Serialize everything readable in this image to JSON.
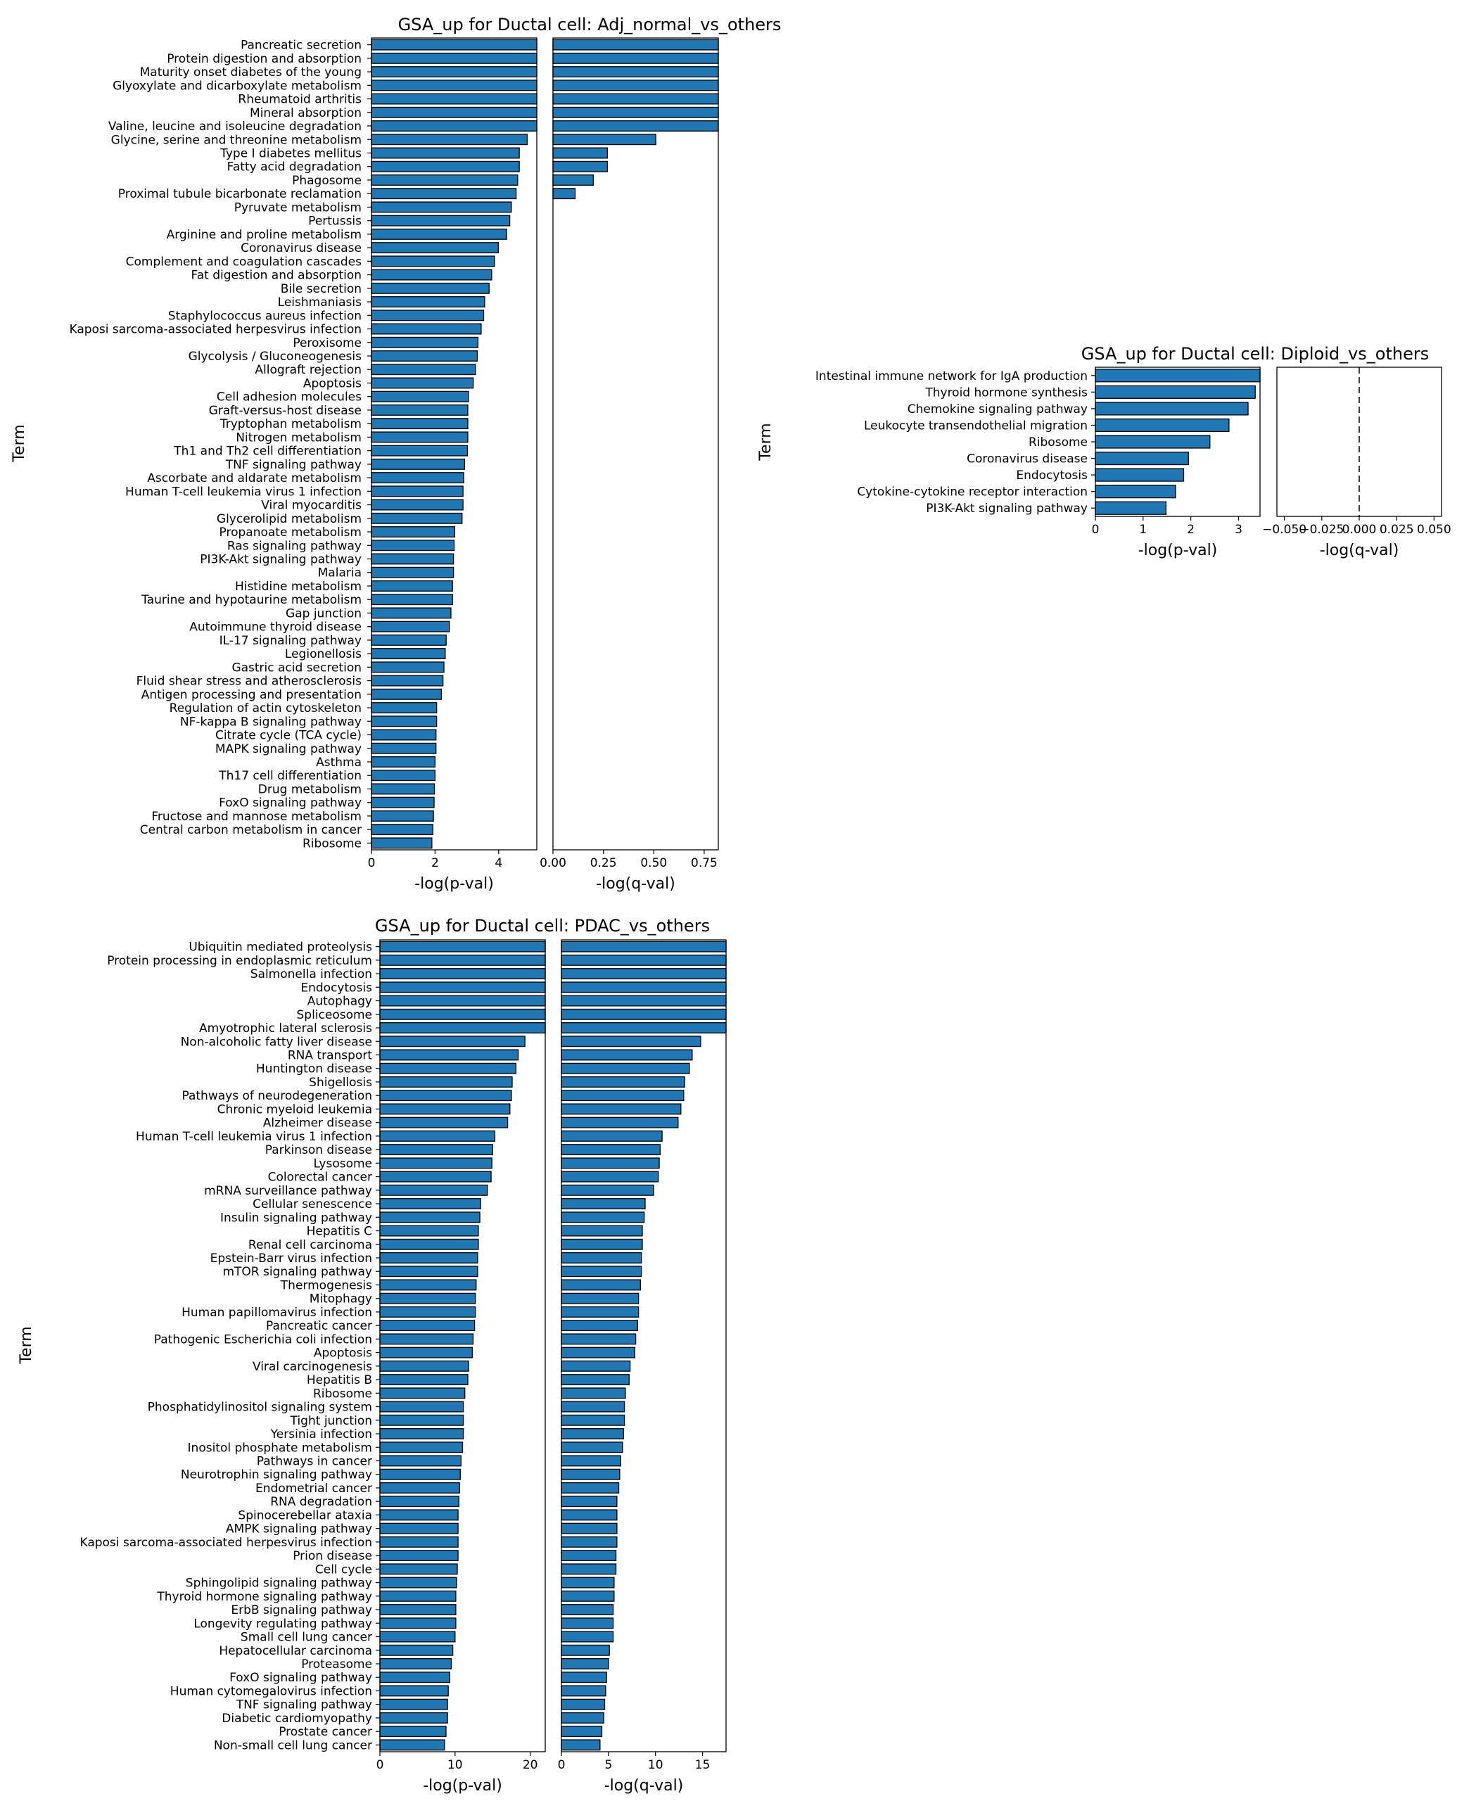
{
  "chart_data": [
    {
      "type": "bar",
      "orientation": "horizontal",
      "title": "GSA_up for Ductal cell: Adj_normal_vs_others",
      "ylabel": "Term",
      "categories": [
        "Pancreatic secretion",
        "Protein digestion and absorption",
        "Maturity onset diabetes of the young",
        "Glyoxylate and dicarboxylate metabolism",
        "Rheumatoid arthritis",
        "Mineral absorption",
        "Valine, leucine and isoleucine degradation",
        "Glycine, serine and threonine metabolism",
        "Type I diabetes mellitus",
        "Fatty acid degradation",
        "Phagosome",
        "Proximal tubule bicarbonate reclamation",
        "Pyruvate metabolism",
        "Pertussis",
        "Arginine and proline metabolism",
        "Coronavirus disease",
        "Complement and coagulation cascades",
        "Fat digestion and absorption",
        "Bile secretion",
        "Leishmaniasis",
        "Staphylococcus aureus infection",
        "Kaposi sarcoma-associated herpesvirus infection",
        "Peroxisome",
        "Glycolysis / Gluconeogenesis",
        "Allograft rejection",
        "Apoptosis",
        "Cell adhesion molecules",
        "Graft-versus-host disease",
        "Tryptophan metabolism",
        "Nitrogen metabolism",
        "Th1 and Th2 cell differentiation",
        "TNF signaling pathway",
        "Ascorbate and aldarate metabolism",
        "Human T-cell leukemia virus 1 infection",
        "Viral myocarditis",
        "Glycerolipid metabolism",
        "Propanoate metabolism",
        "Ras signaling pathway",
        "PI3K-Akt signaling pathway",
        "Malaria",
        "Histidine metabolism",
        "Taurine and hypotaurine metabolism",
        "Gap junction",
        "Autoimmune thyroid disease",
        "IL-17 signaling pathway",
        "Legionellosis",
        "Gastric acid secretion",
        "Fluid shear stress and atherosclerosis",
        "Antigen processing and presentation",
        "Regulation of actin cytoskeleton",
        "NF-kappa B signaling pathway",
        "Citrate cycle (TCA cycle)",
        "MAPK signaling pathway",
        "Asthma",
        "Th17 cell differentiation",
        "Drug metabolism",
        "FoxO signaling pathway",
        "Fructose and mannose metabolism",
        "Central carbon metabolism in cancer",
        "Ribosome"
      ],
      "panels": [
        {
          "xlabel": "-log(p-val)",
          "xlim": [
            0,
            5.2
          ],
          "xticks": [
            0,
            2,
            4
          ],
          "xtick_labels": [
            "0",
            "2",
            "4"
          ],
          "values": [
            5.2,
            5.2,
            5.2,
            5.2,
            5.2,
            5.2,
            5.2,
            4.9,
            4.65,
            4.65,
            4.6,
            4.55,
            4.4,
            4.35,
            4.25,
            3.99,
            3.87,
            3.78,
            3.7,
            3.56,
            3.53,
            3.45,
            3.35,
            3.33,
            3.27,
            3.2,
            3.05,
            3.03,
            3.03,
            3.03,
            3.02,
            2.93,
            2.9,
            2.88,
            2.88,
            2.85,
            2.62,
            2.6,
            2.58,
            2.58,
            2.55,
            2.55,
            2.5,
            2.45,
            2.35,
            2.32,
            2.28,
            2.25,
            2.2,
            2.05,
            2.05,
            2.03,
            2.03,
            2.0,
            2.0,
            1.98,
            1.97,
            1.95,
            1.93,
            1.9
          ]
        },
        {
          "xlabel": "-log(q-val)",
          "xlim": [
            0,
            0.82
          ],
          "xticks": [
            0,
            0.25,
            0.5,
            0.75
          ],
          "xtick_labels": [
            "0.00",
            "0.25",
            "0.50",
            "0.75"
          ],
          "values": [
            0.82,
            0.82,
            0.82,
            0.82,
            0.82,
            0.82,
            0.82,
            0.51,
            0.27,
            0.27,
            0.2,
            0.11,
            0,
            0,
            0,
            0,
            0,
            0,
            0,
            0,
            0,
            0,
            0,
            0,
            0,
            0,
            0,
            0,
            0,
            0,
            0,
            0,
            0,
            0,
            0,
            0,
            0,
            0,
            0,
            0,
            0,
            0,
            0,
            0,
            0,
            0,
            0,
            0,
            0,
            0,
            0,
            0,
            0,
            0,
            0,
            0,
            0,
            0,
            0,
            0
          ]
        }
      ]
    },
    {
      "type": "bar",
      "orientation": "horizontal",
      "title": "GSA_up for Ductal cell: Diploid_vs_others",
      "ylabel": "Term",
      "categories": [
        "Intestinal immune network for IgA production",
        "Thyroid hormone synthesis",
        "Chemokine signaling pathway",
        "Leukocyte transendothelial migration",
        "Ribosome",
        "Coronavirus disease",
        "Endocytosis",
        "Cytokine-cytokine receptor interaction",
        "PI3K-Akt signaling pathway"
      ],
      "panels": [
        {
          "xlabel": "-log(p-val)",
          "xlim": [
            0,
            3.45
          ],
          "xticks": [
            0,
            1,
            2,
            3
          ],
          "xtick_labels": [
            "0",
            "1",
            "2",
            "3"
          ],
          "values": [
            3.45,
            3.35,
            3.2,
            2.8,
            2.4,
            1.95,
            1.85,
            1.68,
            1.48
          ]
        },
        {
          "xlabel": "-log(q-val)",
          "xlim": [
            -0.055,
            0.055
          ],
          "xticks": [
            -0.05,
            -0.025,
            0,
            0.025,
            0.05
          ],
          "xtick_labels": [
            "−0.050",
            "−0.025",
            "0.000",
            "0.025",
            "0.050"
          ],
          "dashed_line_at": 0,
          "values": [
            0,
            0,
            0,
            0,
            0,
            0,
            0,
            0,
            0
          ]
        }
      ]
    },
    {
      "type": "bar",
      "orientation": "horizontal",
      "title": "GSA_up for Ductal cell: PDAC_vs_others",
      "ylabel": "Term",
      "categories": [
        "Ubiquitin mediated proteolysis",
        "Protein processing in endoplasmic reticulum",
        "Salmonella infection",
        "Endocytosis",
        "Autophagy",
        "Spliceosome",
        "Amyotrophic lateral sclerosis",
        "Non-alcoholic fatty liver disease",
        "RNA transport",
        "Huntington disease",
        "Shigellosis",
        "Pathways of neurodegeneration",
        "Chronic myeloid leukemia",
        "Alzheimer disease",
        "Human T-cell leukemia virus 1 infection",
        "Parkinson disease",
        "Lysosome",
        "Colorectal cancer",
        "mRNA surveillance pathway",
        "Cellular senescence",
        "Insulin signaling pathway",
        "Hepatitis C",
        "Renal cell carcinoma",
        "Epstein-Barr virus infection",
        "mTOR signaling pathway",
        "Thermogenesis",
        "Mitophagy",
        "Human papillomavirus infection",
        "Pancreatic cancer",
        "Pathogenic Escherichia coli infection",
        "Apoptosis",
        "Viral carcinogenesis",
        "Hepatitis B",
        "Ribosome",
        "Phosphatidylinositol signaling system",
        "Tight junction",
        "Yersinia infection",
        "Inositol phosphate metabolism",
        "Pathways in cancer",
        "Neurotrophin signaling pathway",
        "Endometrial cancer",
        "RNA degradation",
        "Spinocerebellar ataxia",
        "AMPK signaling pathway",
        "Kaposi sarcoma-associated herpesvirus infection",
        "Prion disease",
        "Cell cycle",
        "Sphingolipid signaling pathway",
        "Thyroid hormone signaling pathway",
        "ErbB signaling pathway",
        "Longevity regulating pathway",
        "Small cell lung cancer",
        "Hepatocellular carcinoma",
        "Proteasome",
        "FoxO signaling pathway",
        "Human cytomegalovirus infection",
        "TNF signaling pathway",
        "Diabetic cardiomyopathy",
        "Prostate cancer",
        "Non-small cell lung cancer"
      ],
      "panels": [
        {
          "xlabel": "-log(p-val)",
          "xlim": [
            0,
            22
          ],
          "xticks": [
            0,
            10,
            20
          ],
          "xtick_labels": [
            "0",
            "10",
            "20"
          ],
          "values": [
            22,
            22,
            22,
            22,
            22,
            22,
            22,
            19.3,
            18.4,
            18.1,
            17.6,
            17.5,
            17.3,
            17.0,
            15.3,
            15.0,
            14.9,
            14.8,
            14.3,
            13.4,
            13.3,
            13.1,
            13.1,
            13.0,
            13.0,
            12.8,
            12.7,
            12.7,
            12.6,
            12.4,
            12.3,
            11.8,
            11.7,
            11.3,
            11.1,
            11.1,
            11.1,
            11.0,
            10.8,
            10.7,
            10.6,
            10.5,
            10.4,
            10.4,
            10.4,
            10.4,
            10.3,
            10.2,
            10.1,
            10.1,
            10.1,
            10.0,
            9.7,
            9.5,
            9.3,
            9.1,
            9.0,
            9.0,
            8.8,
            8.6
          ]
        },
        {
          "xlabel": "-log(q-val)",
          "xlim": [
            0,
            17.5
          ],
          "xticks": [
            0,
            5,
            10,
            15
          ],
          "xtick_labels": [
            "0",
            "5",
            "10",
            "15"
          ],
          "values": [
            17.5,
            17.5,
            17.5,
            17.5,
            17.5,
            17.5,
            17.5,
            14.8,
            13.9,
            13.6,
            13.1,
            13.0,
            12.7,
            12.4,
            10.7,
            10.5,
            10.4,
            10.3,
            9.8,
            8.9,
            8.8,
            8.6,
            8.6,
            8.5,
            8.5,
            8.4,
            8.2,
            8.2,
            8.1,
            7.9,
            7.8,
            7.3,
            7.2,
            6.8,
            6.7,
            6.7,
            6.6,
            6.5,
            6.3,
            6.2,
            6.1,
            5.9,
            5.9,
            5.9,
            5.9,
            5.8,
            5.8,
            5.6,
            5.6,
            5.5,
            5.5,
            5.5,
            5.1,
            5.0,
            4.8,
            4.7,
            4.6,
            4.5,
            4.3,
            4.1
          ]
        }
      ]
    }
  ]
}
